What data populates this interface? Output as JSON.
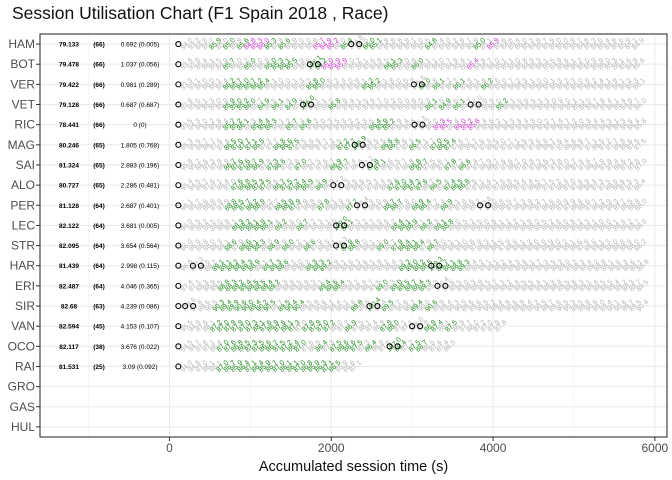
{
  "chart_data": {
    "type": "scatter",
    "title": "Session Utilisation Chart (F1 Spain 2018 , Race)",
    "xlabel": "Accumulated session time (s)",
    "ylabel": "",
    "xlim": [
      -1600,
      6150
    ],
    "x_ticks": [
      0,
      2000,
      4000,
      6000
    ],
    "x_tick_labels": [
      "0",
      "2000",
      "4000",
      "6000"
    ],
    "grid": true,
    "colors": {
      "normal": "#b3b3b3",
      "personal_best": "#1a8a1a",
      "overall_best": "#cc33cc",
      "marker": "#000000"
    },
    "drivers": [
      {
        "code": "HAM",
        "best": "79.133",
        "laps": "(66)",
        "gap": "0.692 (0.005)",
        "green": [
          5,
          7,
          9,
          13,
          15,
          24,
          27,
          28,
          36,
          43
        ],
        "purple": [
          10,
          11,
          12,
          20,
          21,
          22,
          45
        ],
        "pits": [
          25
        ]
      },
      {
        "code": "BOT",
        "best": "79.478",
        "laps": "(66)",
        "gap": "1.037 (0.056)",
        "green": [
          7,
          10,
          13,
          14,
          15,
          16,
          19,
          20,
          30,
          31,
          34
        ],
        "purple": [
          21,
          22,
          23,
          42
        ],
        "pits": [
          19
        ]
      },
      {
        "code": "VER",
        "best": "79.422",
        "laps": "(66)",
        "gap": "0.981 (0.289)",
        "green": [
          7,
          8,
          9,
          10,
          11,
          12,
          19,
          20,
          27,
          28,
          35,
          37,
          40,
          44
        ],
        "purple": [],
        "pits": [
          34
        ]
      },
      {
        "code": "VET",
        "best": "79.128",
        "laps": "(66)",
        "gap": "0.687 (0.687)",
        "green": [
          7,
          8,
          9,
          10,
          12,
          14,
          16,
          18,
          22,
          36,
          38,
          40,
          46
        ],
        "purple": [],
        "pits": [
          18,
          42
        ]
      },
      {
        "code": "RIC",
        "best": "78.441",
        "laps": "(66)",
        "gap": "0 (0)",
        "green": [
          7,
          8,
          9,
          11,
          12,
          13,
          16,
          18,
          28,
          29,
          30
        ],
        "purple": [
          37,
          38,
          40,
          41,
          42
        ],
        "pits": [
          34
        ]
      },
      {
        "code": "MAG",
        "best": "80.246",
        "laps": "(65)",
        "gap": "1.805 (0.768)",
        "green": [
          7,
          8,
          9,
          10,
          11,
          14,
          15,
          16,
          23,
          24,
          25,
          29,
          30,
          33,
          36,
          37,
          38
        ],
        "purple": [],
        "pits": [
          25
        ]
      },
      {
        "code": "SAI",
        "best": "81.324",
        "laps": "(65)",
        "gap": "2.883 (0.196)",
        "green": [
          7,
          8,
          9,
          10,
          11,
          13,
          14,
          17,
          22,
          23,
          27,
          28,
          33,
          34,
          38,
          40
        ],
        "purple": [],
        "pits": [
          26
        ]
      },
      {
        "code": "ALO",
        "best": "80.727",
        "laps": "(65)",
        "gap": "2.286 (0.481)",
        "green": [
          8,
          9,
          10,
          11,
          12,
          14,
          15,
          16,
          17,
          18,
          20,
          30,
          31,
          32,
          33,
          34,
          36,
          38,
          39,
          40
        ],
        "purple": [],
        "pits": [
          22
        ]
      },
      {
        "code": "PER",
        "best": "81.128",
        "laps": "(64)",
        "gap": "2.687 (0.401)",
        "green": [
          7,
          8,
          9,
          10,
          11,
          14,
          15,
          16,
          20,
          24,
          29,
          30,
          33,
          34,
          37
        ],
        "purple": [],
        "pits": [
          25,
          42
        ]
      },
      {
        "code": "LEC",
        "best": "82.122",
        "laps": "(64)",
        "gap": "3.681 (0.005)",
        "green": [
          8,
          9,
          10,
          11,
          12,
          14,
          17,
          22,
          23,
          30,
          31,
          32,
          34,
          36,
          37
        ],
        "purple": [],
        "pits": [
          22
        ]
      },
      {
        "code": "STR",
        "best": "82.095",
        "laps": "(64)",
        "gap": "3.654 (0.564)",
        "green": [
          7,
          9,
          10,
          11,
          13,
          15,
          18,
          23,
          24,
          28,
          30,
          31,
          32,
          33,
          35
        ],
        "purple": [],
        "pits": [
          22
        ]
      },
      {
        "code": "HAR",
        "best": "81.439",
        "laps": "(64)",
        "gap": "2.998 (0.115)",
        "green": [
          5,
          6,
          7,
          8,
          9,
          10,
          12,
          13,
          14,
          18,
          19,
          20,
          31,
          32,
          33,
          34,
          35,
          36,
          37,
          38,
          39
        ],
        "purple": [],
        "pits": [
          2,
          35
        ]
      },
      {
        "code": "ERI",
        "best": "82.487",
        "laps": "(64)",
        "gap": "4.046 (0.365)",
        "green": [
          6,
          7,
          8,
          9,
          10,
          11,
          12,
          13,
          20,
          21,
          22,
          28,
          30,
          31,
          32,
          33,
          34
        ],
        "purple": [],
        "pits": [
          36
        ]
      },
      {
        "code": "SIR",
        "best": "82.68",
        "laps": "(63)",
        "gap": "4.239 (0.086)",
        "green": [
          5,
          6,
          7,
          8,
          9,
          10,
          11,
          12,
          14,
          15,
          16,
          24,
          26,
          28,
          32,
          34
        ],
        "purple": [],
        "pits": [
          1,
          26
        ]
      },
      {
        "code": "VAN",
        "best": "82.594",
        "laps": "(45)",
        "gap": "4.153 (0.107)",
        "green": [
          5,
          6,
          7,
          8,
          9,
          10,
          11,
          12,
          13,
          14,
          15,
          16,
          18,
          19,
          20,
          21,
          24,
          29,
          30,
          35,
          36,
          38
        ],
        "purple": [],
        "pits": [
          33
        ]
      },
      {
        "code": "OCO",
        "best": "82.117",
        "laps": "(38)",
        "gap": "3.676 (0.022)",
        "green": [
          6,
          7,
          8,
          9,
          10,
          11,
          12,
          13,
          14,
          15,
          16,
          17,
          20,
          22,
          23,
          24,
          25,
          27,
          30,
          31,
          33,
          34
        ],
        "purple": [],
        "pits": [
          30
        ]
      },
      {
        "code": "RAI",
        "best": "81.531",
        "laps": "(25)",
        "gap": "3.09 (0.092)",
        "green": [
          6,
          7,
          8,
          9,
          10,
          11,
          12,
          13,
          14,
          15,
          16,
          17,
          18,
          19,
          20,
          21,
          22
        ],
        "purple": [],
        "pits": []
      },
      {
        "code": "GRO",
        "best": "",
        "laps": "",
        "gap": "",
        "green": [],
        "purple": [],
        "pits": []
      },
      {
        "code": "GAS",
        "best": "",
        "laps": "",
        "gap": "",
        "green": [],
        "purple": [],
        "pits": []
      },
      {
        "code": "HUL",
        "best": "",
        "laps": "",
        "gap": "",
        "green": [],
        "purple": [],
        "pits": []
      }
    ]
  }
}
